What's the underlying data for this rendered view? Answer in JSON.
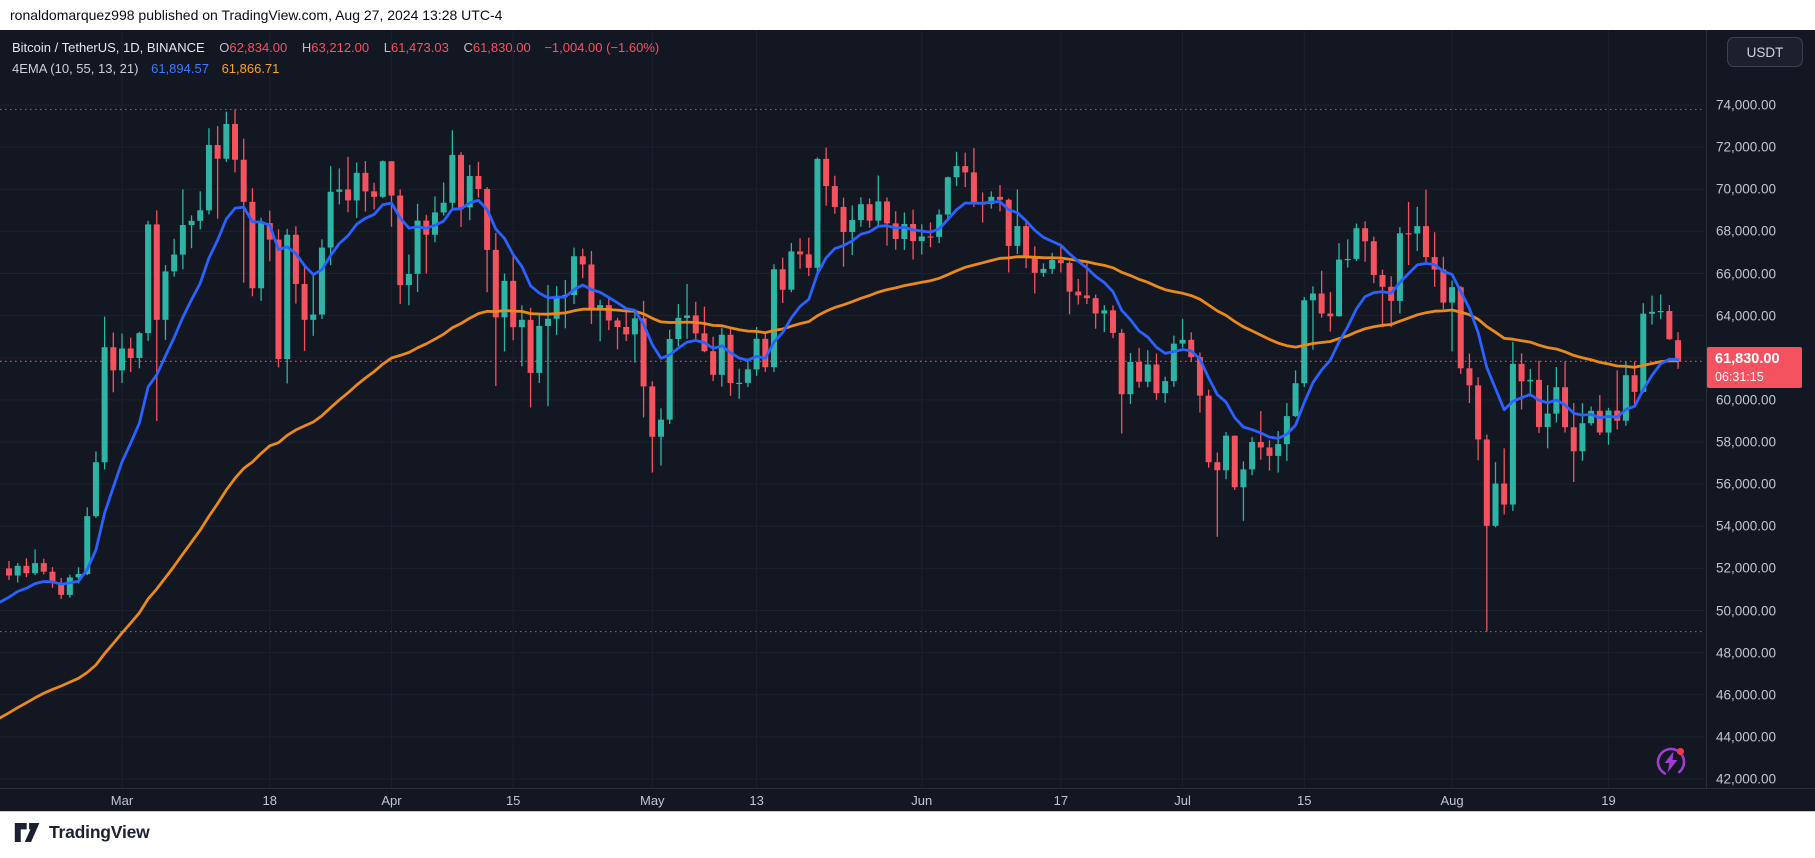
{
  "attribution": {
    "text": "ronaldomarquez998 published on TradingView.com, Aug 27, 2024 13:28 UTC-4"
  },
  "legend": {
    "symbol": "Bitcoin / TetherUS, 1D, BINANCE",
    "ohlc": [
      {
        "label": "O",
        "value": "62,834.00"
      },
      {
        "label": "H",
        "value": "63,212.00"
      },
      {
        "label": "L",
        "value": "61,473.03"
      },
      {
        "label": "C",
        "value": "61,830.00"
      }
    ],
    "change": "−1,004.00 (−1.60%)",
    "indicator": {
      "name": "4EMA (10, 55, 13, 21)",
      "values": [
        {
          "value": "61,894.57",
          "color": "#3c7bff"
        },
        {
          "value": "61,866.71",
          "color": "#f5a623"
        }
      ]
    }
  },
  "currency_button": {
    "label": "USDT"
  },
  "last_price": {
    "value": 61830,
    "price_label": "61,830.00",
    "countdown": "06:31:15",
    "color": "#f4525f"
  },
  "footer": {
    "brand": "TradingView"
  },
  "colors": {
    "background": "#131722",
    "grid": "#1d212c",
    "axis_text": "#c3c6cf",
    "up": "#2db4a5",
    "down": "#f4525f",
    "ema_fast": "#2962ff",
    "ema_slow": "#e8891a",
    "level_gray": "#6a6d78",
    "level_red": "#f4525f"
  },
  "chart_data": {
    "type": "candlestick",
    "title": "Bitcoin / TetherUS, 1D, BINANCE",
    "start_date": "2024-02-17",
    "end_date": "2024-08-27",
    "up_color": "#2db4a5",
    "down_color": "#f4525f",
    "y_axis": {
      "tick_step": 2000,
      "ticks": [
        {
          "price": 74000,
          "label": "74,000.00"
        },
        {
          "price": 72000,
          "label": "72,000.00"
        },
        {
          "price": 70000,
          "label": "70,000.00"
        },
        {
          "price": 68000,
          "label": "68,000.00"
        },
        {
          "price": 66000,
          "label": "66,000.00"
        },
        {
          "price": 64000,
          "label": "64,000.00"
        },
        {
          "price": 62000,
          "label": "62,000.00"
        },
        {
          "price": 60000,
          "label": "60,000.00"
        },
        {
          "price": 58000,
          "label": "58,000.00"
        },
        {
          "price": 56000,
          "label": "56,000.00"
        },
        {
          "price": 54000,
          "label": "54,000.00"
        },
        {
          "price": 52000,
          "label": "52,000.00"
        },
        {
          "price": 50000,
          "label": "50,000.00"
        },
        {
          "price": 48000,
          "label": "48,000.00"
        },
        {
          "price": 46000,
          "label": "46,000.00"
        },
        {
          "price": 44000,
          "label": "44,000.00"
        },
        {
          "price": 42000,
          "label": "42,000.00"
        }
      ],
      "hide_label_price": 62000
    },
    "x_ticks": [
      {
        "label": "Mar",
        "index": 13
      },
      {
        "label": "18",
        "index": 30
      },
      {
        "label": "Apr",
        "index": 44
      },
      {
        "label": "15",
        "index": 58
      },
      {
        "label": "May",
        "index": 74
      },
      {
        "label": "13",
        "index": 86
      },
      {
        "label": "Jun",
        "index": 105
      },
      {
        "label": "17",
        "index": 121
      },
      {
        "label": "Jul",
        "index": 135
      },
      {
        "label": "15",
        "index": 149
      },
      {
        "label": "Aug",
        "index": 166
      },
      {
        "label": "19",
        "index": 184
      }
    ],
    "emas": [
      {
        "name": "ema-slow",
        "period": 55,
        "seed": 44900,
        "color": "#e8891a",
        "legend_value": "61,866.71"
      },
      {
        "name": "ema-fast",
        "period": 10,
        "seed": 50400,
        "color": "#2962ff",
        "legend_value": "61,894.57"
      }
    ],
    "levels": [
      {
        "name": "all-time-high-line",
        "price": 73790,
        "color": "#6a6d78"
      },
      {
        "name": "last-price-line",
        "price": 61830,
        "color": "#f4525f"
      },
      {
        "name": "august-low-line",
        "price": 49000,
        "color": "#6a6d78"
      }
    ],
    "ohlc": [
      [
        52000,
        52350,
        51450,
        51660
      ],
      [
        51660,
        52250,
        51330,
        52120
      ],
      [
        52120,
        52480,
        51590,
        51770
      ],
      [
        51770,
        52900,
        51680,
        52250
      ],
      [
        52250,
        52460,
        51710,
        51840
      ],
      [
        51840,
        52060,
        51080,
        51300
      ],
      [
        51300,
        51550,
        50550,
        50740
      ],
      [
        50740,
        51700,
        50610,
        51570
      ],
      [
        51570,
        52050,
        51290,
        51730
      ],
      [
        51730,
        54900,
        51680,
        54480
      ],
      [
        54480,
        57550,
        54400,
        57040
      ],
      [
        57040,
        63950,
        56700,
        62500
      ],
      [
        62500,
        63200,
        60360,
        61400
      ],
      [
        61400,
        63150,
        60800,
        62440
      ],
      [
        62440,
        62950,
        61320,
        61990
      ],
      [
        61990,
        63230,
        61500,
        63170
      ],
      [
        63170,
        68500,
        62800,
        68330
      ],
      [
        68330,
        69000,
        59000,
        63800
      ],
      [
        63800,
        66400,
        62850,
        66100
      ],
      [
        66100,
        67650,
        65850,
        66900
      ],
      [
        66900,
        69990,
        66200,
        68300
      ],
      [
        68300,
        68760,
        67200,
        68500
      ],
      [
        68500,
        69900,
        68100,
        69000
      ],
      [
        69000,
        72900,
        68800,
        72100
      ],
      [
        72100,
        73000,
        68600,
        71450
      ],
      [
        71450,
        73680,
        71300,
        73100
      ],
      [
        73100,
        73790,
        70800,
        71400
      ],
      [
        71400,
        72400,
        65560,
        69400
      ],
      [
        69400,
        70050,
        64920,
        65300
      ],
      [
        65300,
        68650,
        64700,
        68390
      ],
      [
        68390,
        68990,
        66580,
        67610
      ],
      [
        67610,
        68100,
        61550,
        61940
      ],
      [
        61940,
        68120,
        60780,
        67840
      ],
      [
        67840,
        68240,
        64570,
        65500
      ],
      [
        65500,
        66450,
        62330,
        63800
      ],
      [
        63800,
        65990,
        63040,
        64050
      ],
      [
        64050,
        67620,
        63840,
        67230
      ],
      [
        67230,
        71100,
        66400,
        69880
      ],
      [
        69880,
        70990,
        69280,
        69990
      ],
      [
        69990,
        71540,
        68910,
        69470
      ],
      [
        69470,
        71270,
        68640,
        70780
      ],
      [
        70780,
        71340,
        68940,
        69900
      ],
      [
        69900,
        70310,
        69040,
        69640
      ],
      [
        69640,
        71370,
        69580,
        71330
      ],
      [
        71330,
        71340,
        68220,
        69700
      ],
      [
        69700,
        69990,
        64550,
        65450
      ],
      [
        65450,
        66900,
        64490,
        65980
      ],
      [
        65980,
        69310,
        65120,
        68510
      ],
      [
        68510,
        68790,
        66000,
        67840
      ],
      [
        67840,
        69660,
        67480,
        68900
      ],
      [
        68900,
        70320,
        68750,
        69360
      ],
      [
        69360,
        72800,
        69050,
        71630
      ],
      [
        71630,
        71760,
        68210,
        69140
      ],
      [
        69140,
        71160,
        68530,
        70630
      ],
      [
        70630,
        71300,
        69600,
        70010
      ],
      [
        70010,
        70100,
        65110,
        67120
      ],
      [
        67120,
        67930,
        60660,
        63920
      ],
      [
        63920,
        66000,
        62300,
        65650
      ],
      [
        65650,
        66880,
        62830,
        63450
      ],
      [
        63450,
        64490,
        61600,
        63800
      ],
      [
        63800,
        64370,
        59640,
        61280
      ],
      [
        61280,
        64120,
        60800,
        63510
      ],
      [
        63510,
        65450,
        59700,
        63850
      ],
      [
        63850,
        65400,
        63090,
        64940
      ],
      [
        64940,
        65690,
        63400,
        64980
      ],
      [
        64980,
        67230,
        64550,
        66820
      ],
      [
        66820,
        67180,
        65780,
        66430
      ],
      [
        66430,
        67070,
        63600,
        64280
      ],
      [
        64280,
        64750,
        62780,
        64500
      ],
      [
        64500,
        64820,
        63310,
        63770
      ],
      [
        63770,
        63900,
        62400,
        63460
      ],
      [
        63460,
        64370,
        62790,
        63110
      ],
      [
        63110,
        64230,
        61770,
        63870
      ],
      [
        63870,
        64700,
        59170,
        60640
      ],
      [
        60640,
        60880,
        56550,
        58250
      ],
      [
        58250,
        59600,
        56880,
        59060
      ],
      [
        59060,
        63330,
        58850,
        62890
      ],
      [
        62890,
        64550,
        62550,
        63890
      ],
      [
        63890,
        65500,
        62900,
        64010
      ],
      [
        64010,
        64660,
        62750,
        63160
      ],
      [
        63160,
        64430,
        62260,
        62310
      ],
      [
        62310,
        63000,
        60890,
        61190
      ],
      [
        61190,
        63430,
        60630,
        63090
      ],
      [
        63090,
        63470,
        60190,
        60800
      ],
      [
        60800,
        61480,
        60050,
        60810
      ],
      [
        60810,
        61880,
        60610,
        61450
      ],
      [
        61450,
        63460,
        61140,
        62900
      ],
      [
        62900,
        63130,
        61330,
        61550
      ],
      [
        61550,
        66440,
        61320,
        66200
      ],
      [
        66200,
        66750,
        64600,
        65230
      ],
      [
        65230,
        67450,
        65110,
        67050
      ],
      [
        67050,
        67670,
        66230,
        66910
      ],
      [
        66910,
        67700,
        65880,
        66270
      ],
      [
        66270,
        71510,
        66060,
        71440
      ],
      [
        71440,
        71980,
        69220,
        70150
      ],
      [
        70150,
        70640,
        68840,
        69160
      ],
      [
        69160,
        69600,
        66320,
        67970
      ],
      [
        67970,
        69230,
        66880,
        68540
      ],
      [
        68540,
        69620,
        68220,
        69290
      ],
      [
        69290,
        69560,
        68180,
        68510
      ],
      [
        68510,
        70650,
        68230,
        69420
      ],
      [
        69420,
        69610,
        67320,
        68380
      ],
      [
        68380,
        68950,
        67130,
        67640
      ],
      [
        67640,
        68900,
        67120,
        68350
      ],
      [
        68350,
        69030,
        66660,
        67540
      ],
      [
        67540,
        68340,
        66900,
        67760
      ],
      [
        67760,
        68420,
        67250,
        67740
      ],
      [
        67740,
        69040,
        67440,
        68800
      ],
      [
        68800,
        70600,
        68570,
        70570
      ],
      [
        70570,
        71780,
        70150,
        71100
      ],
      [
        71100,
        71740,
        70100,
        70800
      ],
      [
        70800,
        71950,
        69150,
        69330
      ],
      [
        69330,
        69850,
        68420,
        69300
      ],
      [
        69300,
        69900,
        69080,
        69640
      ],
      [
        69640,
        70200,
        68950,
        69500
      ],
      [
        69500,
        69560,
        66050,
        67310
      ],
      [
        67310,
        69990,
        66930,
        68250
      ],
      [
        68250,
        68440,
        66250,
        66770
      ],
      [
        66770,
        67290,
        65050,
        66030
      ],
      [
        66030,
        66480,
        65840,
        66220
      ],
      [
        66220,
        66980,
        65980,
        66640
      ],
      [
        66640,
        67290,
        66050,
        66500
      ],
      [
        66500,
        66580,
        64060,
        65140
      ],
      [
        65140,
        65740,
        64530,
        64960
      ],
      [
        64960,
        66480,
        64550,
        64830
      ],
      [
        64830,
        65000,
        63380,
        64100
      ],
      [
        64100,
        64500,
        63220,
        64250
      ],
      [
        64250,
        64490,
        62930,
        63180
      ],
      [
        63180,
        63370,
        58400,
        60270
      ],
      [
        60270,
        62230,
        59810,
        61800
      ],
      [
        61800,
        62470,
        60580,
        60860
      ],
      [
        60860,
        62360,
        60600,
        61680
      ],
      [
        61680,
        62200,
        60000,
        60320
      ],
      [
        60320,
        61100,
        59860,
        60890
      ],
      [
        60890,
        63050,
        60620,
        62670
      ],
      [
        62670,
        63850,
        62480,
        62850
      ],
      [
        62850,
        63210,
        61790,
        62030
      ],
      [
        62030,
        62250,
        59400,
        60200
      ],
      [
        60200,
        60480,
        56780,
        57040
      ],
      [
        57040,
        57500,
        53500,
        56660
      ],
      [
        56660,
        58470,
        56230,
        58300
      ],
      [
        58300,
        58310,
        55720,
        55850
      ],
      [
        55850,
        57080,
        54260,
        56700
      ],
      [
        56700,
        58230,
        56420,
        58000
      ],
      [
        58000,
        59470,
        57160,
        57740
      ],
      [
        57740,
        58080,
        56640,
        57340
      ],
      [
        57340,
        58520,
        56550,
        57900
      ],
      [
        57900,
        59850,
        57100,
        59230
      ],
      [
        59230,
        61400,
        59190,
        60790
      ],
      [
        60790,
        64890,
        60610,
        64730
      ],
      [
        64730,
        65390,
        62380,
        65050
      ],
      [
        65050,
        66130,
        63900,
        64100
      ],
      [
        64100,
        65120,
        63240,
        63970
      ],
      [
        63970,
        67440,
        63950,
        66660
      ],
      [
        66660,
        67620,
        66280,
        66690
      ],
      [
        66690,
        68370,
        66590,
        68150
      ],
      [
        68150,
        68480,
        66560,
        67530
      ],
      [
        67530,
        67750,
        65540,
        65930
      ],
      [
        65930,
        66180,
        63450,
        65370
      ],
      [
        65370,
        65870,
        63450,
        64700
      ],
      [
        64700,
        68200,
        64100,
        67910
      ],
      [
        67910,
        69400,
        66400,
        67900
      ],
      [
        67900,
        69170,
        67070,
        68250
      ],
      [
        68250,
        69980,
        66450,
        66780
      ],
      [
        66780,
        67960,
        65370,
        66190
      ],
      [
        66190,
        66800,
        64300,
        64620
      ],
      [
        64620,
        65660,
        62300,
        65350
      ],
      [
        65350,
        65400,
        61230,
        61500
      ],
      [
        61500,
        62200,
        59850,
        60690
      ],
      [
        60690,
        61080,
        57130,
        58120
      ],
      [
        58120,
        58350,
        49000,
        54020
      ],
      [
        54020,
        57040,
        53950,
        56030
      ],
      [
        56030,
        57700,
        54560,
        55030
      ],
      [
        55030,
        62760,
        54730,
        61710
      ],
      [
        61710,
        62210,
        59540,
        60880
      ],
      [
        60880,
        61470,
        60250,
        60950
      ],
      [
        60950,
        61860,
        58430,
        58710
      ],
      [
        58710,
        60700,
        57700,
        59350
      ],
      [
        59350,
        61560,
        58930,
        60600
      ],
      [
        60600,
        61820,
        58450,
        58700
      ],
      [
        58700,
        59850,
        56100,
        57560
      ],
      [
        57560,
        59840,
        57110,
        58890
      ],
      [
        58890,
        59690,
        58780,
        59480
      ],
      [
        59480,
        60230,
        58330,
        58450
      ],
      [
        58450,
        59620,
        57870,
        59490
      ],
      [
        59490,
        61400,
        58600,
        59010
      ],
      [
        59010,
        61830,
        58770,
        61170
      ],
      [
        61170,
        61820,
        59750,
        60380
      ],
      [
        60380,
        64590,
        60340,
        64090
      ],
      [
        64090,
        64950,
        63580,
        64180
      ],
      [
        64180,
        65000,
        63830,
        64220
      ],
      [
        64220,
        64500,
        62850,
        62880
      ],
      [
        62834,
        63212,
        61473,
        61830
      ]
    ]
  }
}
